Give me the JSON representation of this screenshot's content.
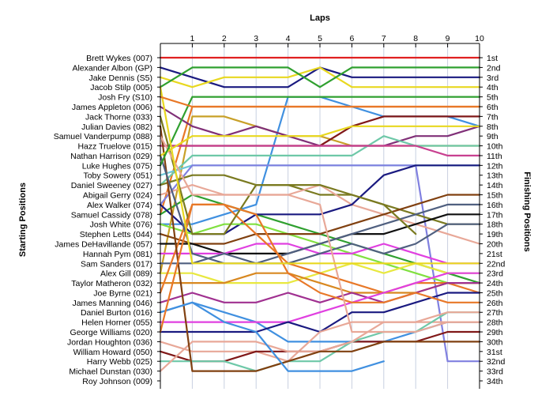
{
  "chart_data": {
    "type": "line",
    "title": "",
    "xlabel": "Laps",
    "ylabel_left": "Starting Positions",
    "ylabel_right": "Finishing Positions",
    "x": [
      0,
      1,
      2,
      3,
      4,
      5,
      6,
      7,
      8,
      9,
      10
    ],
    "xlim": [
      0,
      10
    ],
    "ylim": [
      1,
      34
    ],
    "y_inverted": true,
    "grid": "vertical",
    "starting_labels": [
      "Brett Wykes (007)",
      "Alexander Albon (GP)",
      "Jake Dennis (S5)",
      "Jacob Stilp (005)",
      "Josh Fry (S10)",
      "James Appleton (006)",
      "Jack Thorne (033)",
      "Julian Davies (082)",
      "Samuel Vanderpump (088)",
      "Hazz Truelove (015)",
      "Nathan Harrison (029)",
      "Luke Hughes (075)",
      "Toby Sowery (051)",
      "Daniel Sweeney (027)",
      "Abigail Gerry (024)",
      "Alex Walker (074)",
      "Samuel Cassidy (078)",
      "Josh White (076)",
      "Stephen Letts (044)",
      "James DeHavillande (057)",
      "Hannah Pym (081)",
      "Sam Sanders (017)",
      "Alex Gill (089)",
      "Taylor Matheron (032)",
      "Joe Byrne (021)",
      "James Manning (046)",
      "Daniel Burton (016)",
      "Helen Horner (055)",
      "George Williams (020)",
      "Jordan Houghton (036)",
      "William Howard (050)",
      "Harry Webb (025)",
      "Michael Dunstan (030)",
      "Roy Johnson (009)"
    ],
    "finishing_labels": [
      "1st",
      "2nd",
      "3rd",
      "4th",
      "5th",
      "6th",
      "7th",
      "8th",
      "9th",
      "10th",
      "11th",
      "12th",
      "13th",
      "14th",
      "15th",
      "16th",
      "17th",
      "18th",
      "19th",
      "20th",
      "21st",
      "22nd",
      "23rd",
      "24th",
      "25th",
      "26th",
      "27th",
      "28th",
      "29th",
      "30th",
      "31st",
      "32nd",
      "33rd",
      "34th"
    ],
    "series": [
      {
        "color": "#e02020",
        "values": [
          1,
          1,
          1,
          1,
          1,
          1,
          1,
          1,
          1,
          1,
          1
        ]
      },
      {
        "color": "#1a1a80",
        "values": [
          2,
          3,
          4,
          4,
          4,
          2,
          3,
          3,
          3,
          3,
          3
        ]
      },
      {
        "color": "#e8d820",
        "values": [
          3,
          4,
          3,
          3,
          3,
          2,
          4,
          4,
          4,
          4,
          4
        ]
      },
      {
        "color": "#30a030",
        "values": [
          4,
          2,
          2,
          2,
          2,
          4,
          2,
          2,
          2,
          2,
          2
        ]
      },
      {
        "color": "#4090e0",
        "values": [
          18,
          18,
          17,
          16,
          5,
          5,
          6,
          7,
          7,
          7,
          8
        ]
      },
      {
        "color": "#e87828",
        "values": [
          17,
          6,
          6,
          6,
          6,
          6,
          6,
          6,
          6,
          6,
          6
        ]
      },
      {
        "color": "#c8a028",
        "values": [
          23,
          7,
          7,
          8,
          9,
          9,
          10,
          10,
          10,
          10,
          10
        ]
      },
      {
        "color": "#803078",
        "values": [
          6,
          8,
          9,
          8,
          9,
          10,
          10,
          10,
          9,
          9,
          8
        ]
      },
      {
        "color": "#6ec8a8",
        "values": [
          14,
          11,
          11,
          11,
          11,
          11,
          11,
          9,
          10,
          10,
          10
        ]
      },
      {
        "color": "#801818",
        "values": [
          10,
          10,
          10,
          10,
          10,
          10,
          8,
          7,
          7,
          7,
          7
        ]
      },
      {
        "color": "#c84090",
        "values": [
          10,
          10,
          10,
          10,
          10,
          10,
          10,
          10,
          10,
          11,
          11
        ]
      },
      {
        "color": "#70c8d8",
        "values": [
          13,
          12,
          12,
          12,
          12,
          12,
          12,
          12,
          12,
          12,
          12
        ]
      },
      {
        "color": "#8080e0",
        "values": [
          16,
          12,
          12,
          12,
          12,
          12,
          12,
          12,
          12,
          32,
          32
        ]
      },
      {
        "color": "#7a7a20",
        "values": [
          14,
          13,
          13,
          14,
          14,
          15,
          15,
          16,
          17,
          18,
          18
        ]
      },
      {
        "color": "#e8a898",
        "values": [
          15,
          14,
          15,
          15,
          15,
          14,
          16,
          17,
          18,
          19,
          20
        ]
      },
      {
        "color": "#30a030",
        "values": [
          17,
          15,
          16,
          17,
          18,
          19,
          20,
          21,
          22,
          23,
          24
        ]
      },
      {
        "color": "#1a1a80",
        "values": [
          16,
          19,
          19,
          17,
          17,
          17,
          16,
          13,
          12,
          12,
          12
        ]
      },
      {
        "color": "#80e040",
        "values": [
          18,
          19,
          18,
          18,
          19,
          20,
          21,
          22,
          23,
          24,
          24
        ]
      },
      {
        "color": "#804010",
        "values": [
          19,
          20,
          20,
          19,
          19,
          19,
          18,
          17,
          16,
          15,
          15
        ]
      },
      {
        "color": "#101010",
        "values": [
          20,
          20,
          21,
          21,
          21,
          20,
          19,
          19,
          18,
          17,
          17
        ]
      },
      {
        "color": "#e040e0",
        "values": [
          21,
          21,
          21,
          20,
          20,
          21,
          21,
          20,
          21,
          22,
          22
        ]
      },
      {
        "color": "#506080",
        "values": [
          22,
          22,
          21,
          22,
          21,
          20,
          19,
          18,
          17,
          16,
          16
        ]
      },
      {
        "color": "#e8e840",
        "values": [
          23,
          23,
          24,
          24,
          24,
          23,
          22,
          23,
          22,
          23,
          23
        ]
      },
      {
        "color": "#d88820",
        "values": [
          24,
          24,
          24,
          23,
          23,
          24,
          25,
          25,
          25,
          24,
          24
        ]
      },
      {
        "color": "#e87828",
        "values": [
          25,
          16,
          16,
          19,
          22,
          23,
          24,
          25,
          24,
          24,
          25
        ]
      },
      {
        "color": "#a03090",
        "values": [
          26,
          25,
          26,
          26,
          25,
          26,
          25,
          26,
          25,
          24,
          24
        ]
      },
      {
        "color": "#4090e0",
        "values": [
          27,
          26,
          27,
          28,
          30,
          30,
          30,
          30,
          29,
          28,
          28
        ]
      },
      {
        "color": "#e040e0",
        "values": [
          28,
          28,
          28,
          28,
          28,
          27,
          26,
          25,
          24,
          23,
          23
        ]
      },
      {
        "color": "#1a1a80",
        "values": [
          29,
          29,
          29,
          29,
          28,
          29,
          27,
          27,
          26,
          25,
          25
        ]
      },
      {
        "color": "#e8a898",
        "values": [
          30,
          31,
          31,
          31,
          32,
          29,
          28,
          28,
          28,
          28,
          28
        ]
      },
      {
        "color": "#801818",
        "values": [
          31,
          32,
          32,
          31,
          31,
          31,
          30,
          30,
          30,
          29,
          29
        ]
      },
      {
        "color": "#6ec8a8",
        "values": [
          32,
          32,
          32,
          33,
          32,
          32,
          30,
          29,
          29,
          27,
          27
        ]
      },
      {
        "color": "#e8a898",
        "values": [
          33,
          30,
          30,
          30,
          31,
          31,
          30,
          28,
          28,
          27,
          27
        ]
      },
      {
        "color": "#804010",
        "values": [
          8,
          33,
          33,
          33,
          32,
          31,
          31,
          30,
          30,
          30,
          30
        ]
      },
      {
        "color": "#4090e0",
        "values": [
          27,
          26,
          28,
          29,
          33,
          33,
          33,
          32,
          null,
          null,
          null
        ]
      },
      {
        "color": "#7a7a20",
        "values": [
          7,
          19,
          19,
          14,
          14,
          14,
          15,
          16,
          19,
          null,
          null
        ]
      },
      {
        "color": "#506080",
        "values": [
          11,
          21,
          22,
          22,
          22,
          21,
          20,
          21,
          20,
          18,
          18
        ]
      },
      {
        "color": "#e87828",
        "values": [
          29,
          16,
          16,
          17,
          23,
          25,
          26,
          26,
          25,
          26,
          26
        ]
      },
      {
        "color": "#e8a898",
        "values": [
          9,
          15,
          15,
          15,
          15,
          16,
          29,
          29,
          29,
          28,
          28
        ]
      },
      {
        "color": "#e8d820",
        "values": [
          11,
          9,
          9,
          9,
          9,
          9,
          8,
          8,
          8,
          8,
          8
        ]
      },
      {
        "color": "#30a030",
        "values": [
          12,
          5,
          5,
          5,
          5,
          5,
          5,
          5,
          5,
          5,
          5
        ]
      },
      {
        "color": "#e8d820",
        "values": [
          4,
          22,
          22,
          22,
          22,
          22,
          22,
          22,
          22,
          22,
          22
        ]
      },
      {
        "color": "#e87828",
        "values": [
          5,
          6,
          6,
          6,
          6,
          6,
          6,
          6,
          6,
          6,
          6
        ]
      }
    ]
  }
}
